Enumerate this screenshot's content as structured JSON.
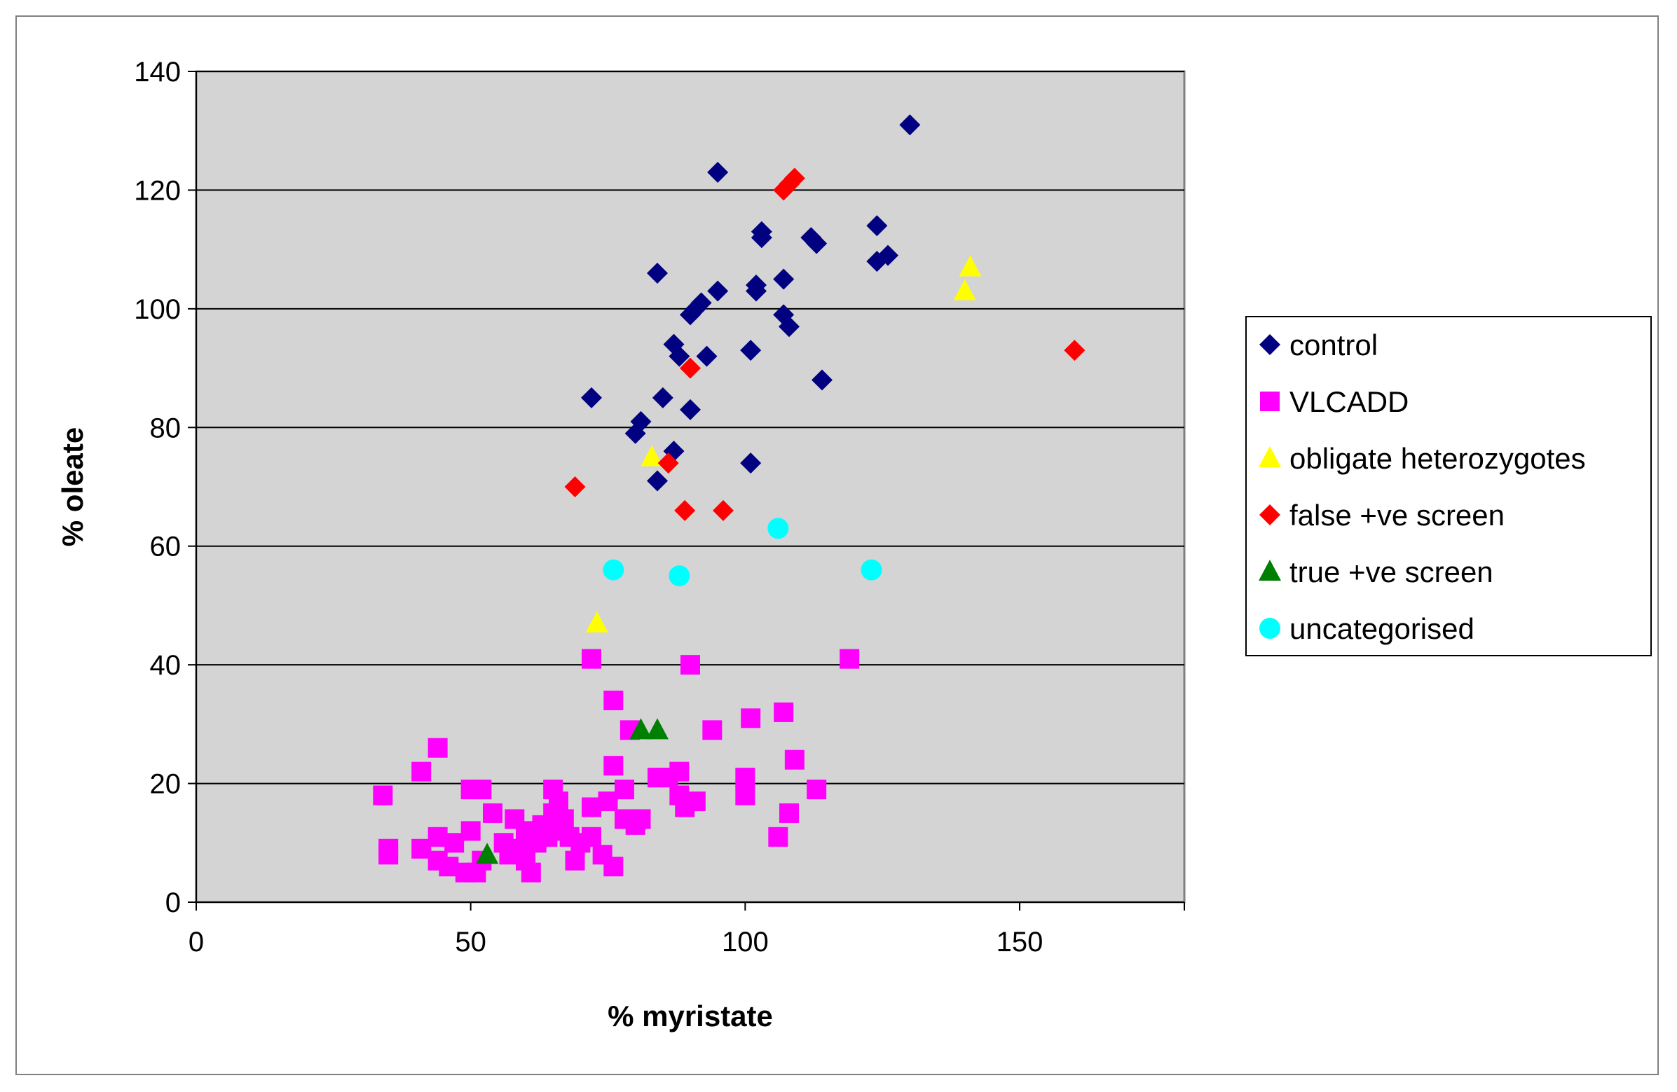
{
  "chart_data": {
    "type": "scatter",
    "title": "",
    "xlabel": "% myristate",
    "ylabel": "% oleate",
    "xlim": [
      0,
      180
    ],
    "ylim": [
      0,
      140
    ],
    "x_ticks": [
      0,
      50,
      100,
      150
    ],
    "y_ticks": [
      0,
      20,
      40,
      60,
      80,
      100,
      120,
      140
    ],
    "grid": "horizontal",
    "plot_background": "#d4d4d4",
    "legend_position": "right",
    "series": [
      {
        "name": "control",
        "marker": "diamond",
        "color": "#000080",
        "points": [
          [
            72,
            85
          ],
          [
            80,
            79
          ],
          [
            81,
            81
          ],
          [
            84,
            106
          ],
          [
            84,
            71
          ],
          [
            85,
            85
          ],
          [
            87,
            76
          ],
          [
            87,
            94
          ],
          [
            88,
            92
          ],
          [
            90,
            83
          ],
          [
            90,
            99
          ],
          [
            91,
            100
          ],
          [
            92,
            101
          ],
          [
            93,
            92
          ],
          [
            95,
            103
          ],
          [
            95,
            123
          ],
          [
            101,
            93
          ],
          [
            101,
            74
          ],
          [
            102,
            103
          ],
          [
            102,
            104
          ],
          [
            103,
            112
          ],
          [
            103,
            113
          ],
          [
            107,
            105
          ],
          [
            107,
            99
          ],
          [
            108,
            97
          ],
          [
            112,
            112
          ],
          [
            113,
            111
          ],
          [
            114,
            88
          ],
          [
            124,
            108
          ],
          [
            124,
            114
          ],
          [
            126,
            109
          ],
          [
            130,
            131
          ]
        ]
      },
      {
        "name": "VLCADD",
        "marker": "square",
        "color": "#ff00ff",
        "points": [
          [
            34,
            18
          ],
          [
            35,
            8
          ],
          [
            35,
            9
          ],
          [
            41,
            22
          ],
          [
            41,
            9
          ],
          [
            44,
            26
          ],
          [
            44,
            11
          ],
          [
            44,
            7
          ],
          [
            46,
            6
          ],
          [
            47,
            10
          ],
          [
            49,
            5
          ],
          [
            50,
            12
          ],
          [
            50,
            19
          ],
          [
            51,
            5
          ],
          [
            52,
            19
          ],
          [
            52,
            7
          ],
          [
            54,
            15
          ],
          [
            56,
            10
          ],
          [
            57,
            8
          ],
          [
            58,
            14
          ],
          [
            59,
            9
          ],
          [
            60,
            7
          ],
          [
            60,
            11
          ],
          [
            61,
            5
          ],
          [
            61,
            12
          ],
          [
            62,
            10
          ],
          [
            63,
            13
          ],
          [
            64,
            11
          ],
          [
            65,
            19
          ],
          [
            65,
            15
          ],
          [
            66,
            17
          ],
          [
            66,
            12
          ],
          [
            67,
            14
          ],
          [
            68,
            11
          ],
          [
            69,
            7
          ],
          [
            70,
            10
          ],
          [
            72,
            16
          ],
          [
            72,
            11
          ],
          [
            72,
            41
          ],
          [
            74,
            8
          ],
          [
            75,
            17
          ],
          [
            76,
            23
          ],
          [
            76,
            34
          ],
          [
            76,
            6
          ],
          [
            78,
            19
          ],
          [
            78,
            14
          ],
          [
            79,
            29
          ],
          [
            80,
            13
          ],
          [
            81,
            14
          ],
          [
            84,
            21
          ],
          [
            86,
            21
          ],
          [
            88,
            22
          ],
          [
            88,
            18
          ],
          [
            89,
            16
          ],
          [
            90,
            40
          ],
          [
            91,
            17
          ],
          [
            94,
            29
          ],
          [
            100,
            21
          ],
          [
            100,
            18
          ],
          [
            101,
            31
          ],
          [
            106,
            11
          ],
          [
            107,
            32
          ],
          [
            108,
            15
          ],
          [
            109,
            24
          ],
          [
            113,
            19
          ],
          [
            119,
            41
          ]
        ]
      },
      {
        "name": "obligate heterozygotes",
        "marker": "triangle",
        "color": "#ffff00",
        "points": [
          [
            73,
            47
          ],
          [
            83,
            75
          ],
          [
            140,
            103
          ],
          [
            141,
            107
          ]
        ]
      },
      {
        "name": "false +ve screen",
        "marker": "diamond",
        "color": "#ff0000",
        "points": [
          [
            69,
            70
          ],
          [
            86,
            74
          ],
          [
            89,
            66
          ],
          [
            90,
            90
          ],
          [
            96,
            66
          ],
          [
            107,
            120
          ],
          [
            108,
            121
          ],
          [
            109,
            122
          ],
          [
            160,
            93
          ]
        ]
      },
      {
        "name": "true +ve screen",
        "marker": "triangle",
        "color": "#008000",
        "points": [
          [
            53,
            8
          ],
          [
            81,
            29
          ],
          [
            84,
            29
          ]
        ]
      },
      {
        "name": "uncategorised",
        "marker": "circle",
        "color": "#00ffff",
        "points": [
          [
            76,
            56
          ],
          [
            88,
            55
          ],
          [
            106,
            63
          ],
          [
            123,
            56
          ]
        ]
      }
    ]
  }
}
